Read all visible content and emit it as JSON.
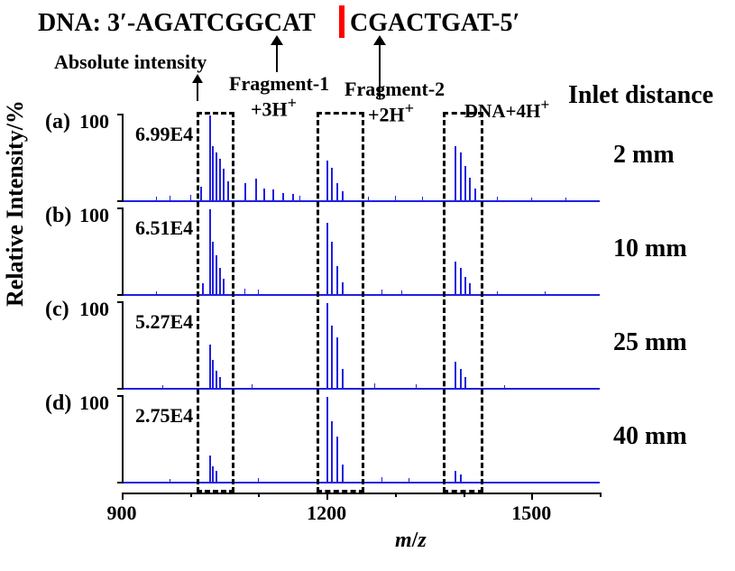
{
  "dna": {
    "left": "DNA: 3′-AGATCGGCAT",
    "right": "CGACTGAT-5′",
    "bar_color": "#ff0000"
  },
  "headers": {
    "absolute_intensity": "Absolute intensity",
    "fragment1": "Fragment-1",
    "fragment1_sub": "+3H",
    "fragment2": "Fragment-2",
    "fragment2_sub": "+2H",
    "dna4h": "DNA+4H",
    "inlet_distance": "Inlet distance"
  },
  "ylabel": "Relative Intensity/%",
  "xaxis": {
    "title_m": "m",
    "title_slash": "/",
    "title_z": "z",
    "min": 900,
    "max": 1600,
    "major_ticks": [
      900,
      1200,
      1500
    ],
    "minor_every2of3": true,
    "label_fontsize": 22
  },
  "colors": {
    "peak": "#2020e0",
    "text": "#000000",
    "bg": "#ffffff"
  },
  "annotation_boxes": {
    "f1": {
      "mz_lo": 1010,
      "mz_hi": 1065
    },
    "f2": {
      "mz_lo": 1185,
      "mz_hi": 1255
    },
    "dna": {
      "mz_lo": 1370,
      "mz_hi": 1430
    }
  },
  "panels": [
    {
      "id": "a",
      "letter": "(a)",
      "abs_int": "6.99E4",
      "inlet": "2 mm",
      "peaks": [
        {
          "mz": 1028,
          "h": 98
        },
        {
          "mz": 1032,
          "h": 62
        },
        {
          "mz": 1037,
          "h": 55
        },
        {
          "mz": 1042,
          "h": 48
        },
        {
          "mz": 1048,
          "h": 36
        },
        {
          "mz": 1055,
          "h": 22
        },
        {
          "mz": 1015,
          "h": 16
        },
        {
          "mz": 1080,
          "h": 20
        },
        {
          "mz": 1095,
          "h": 25
        },
        {
          "mz": 1108,
          "h": 14
        },
        {
          "mz": 1120,
          "h": 13
        },
        {
          "mz": 1135,
          "h": 8
        },
        {
          "mz": 1150,
          "h": 7
        },
        {
          "mz": 1200,
          "h": 46
        },
        {
          "mz": 1207,
          "h": 38
        },
        {
          "mz": 1214,
          "h": 20
        },
        {
          "mz": 1222,
          "h": 10
        },
        {
          "mz": 1388,
          "h": 62
        },
        {
          "mz": 1395,
          "h": 55
        },
        {
          "mz": 1402,
          "h": 40
        },
        {
          "mz": 1409,
          "h": 26
        },
        {
          "mz": 1416,
          "h": 14
        }
      ],
      "noise": [
        {
          "mz": 950,
          "h": 4
        },
        {
          "mz": 970,
          "h": 5
        },
        {
          "mz": 1000,
          "h": 6
        },
        {
          "mz": 1160,
          "h": 5
        },
        {
          "mz": 1260,
          "h": 4
        },
        {
          "mz": 1300,
          "h": 5
        },
        {
          "mz": 1340,
          "h": 4
        },
        {
          "mz": 1450,
          "h": 4
        },
        {
          "mz": 1500,
          "h": 3
        },
        {
          "mz": 1550,
          "h": 3
        }
      ]
    },
    {
      "id": "b",
      "letter": "(b)",
      "abs_int": "6.51E4",
      "inlet": "10 mm",
      "peaks": [
        {
          "mz": 1028,
          "h": 98
        },
        {
          "mz": 1032,
          "h": 60
        },
        {
          "mz": 1037,
          "h": 45
        },
        {
          "mz": 1042,
          "h": 30
        },
        {
          "mz": 1048,
          "h": 18
        },
        {
          "mz": 1018,
          "h": 12
        },
        {
          "mz": 1200,
          "h": 82
        },
        {
          "mz": 1207,
          "h": 60
        },
        {
          "mz": 1214,
          "h": 32
        },
        {
          "mz": 1222,
          "h": 14
        },
        {
          "mz": 1388,
          "h": 38
        },
        {
          "mz": 1395,
          "h": 30
        },
        {
          "mz": 1402,
          "h": 20
        },
        {
          "mz": 1409,
          "h": 12
        }
      ],
      "noise": [
        {
          "mz": 950,
          "h": 3
        },
        {
          "mz": 1080,
          "h": 6
        },
        {
          "mz": 1100,
          "h": 5
        },
        {
          "mz": 1280,
          "h": 5
        },
        {
          "mz": 1310,
          "h": 4
        },
        {
          "mz": 1450,
          "h": 3
        },
        {
          "mz": 1520,
          "h": 3
        }
      ]
    },
    {
      "id": "c",
      "letter": "(c)",
      "abs_int": "5.27E4",
      "inlet": "25 mm",
      "peaks": [
        {
          "mz": 1028,
          "h": 50
        },
        {
          "mz": 1032,
          "h": 32
        },
        {
          "mz": 1037,
          "h": 20
        },
        {
          "mz": 1042,
          "h": 12
        },
        {
          "mz": 1200,
          "h": 98
        },
        {
          "mz": 1207,
          "h": 72
        },
        {
          "mz": 1214,
          "h": 58
        },
        {
          "mz": 1222,
          "h": 22
        },
        {
          "mz": 1388,
          "h": 30
        },
        {
          "mz": 1395,
          "h": 22
        },
        {
          "mz": 1402,
          "h": 12
        }
      ],
      "noise": [
        {
          "mz": 960,
          "h": 3
        },
        {
          "mz": 1090,
          "h": 4
        },
        {
          "mz": 1270,
          "h": 5
        },
        {
          "mz": 1330,
          "h": 4
        },
        {
          "mz": 1460,
          "h": 3
        }
      ]
    },
    {
      "id": "d",
      "letter": "(d)",
      "abs_int": "2.75E4",
      "inlet": "40 mm",
      "peaks": [
        {
          "mz": 1028,
          "h": 30
        },
        {
          "mz": 1032,
          "h": 18
        },
        {
          "mz": 1037,
          "h": 12
        },
        {
          "mz": 1200,
          "h": 98
        },
        {
          "mz": 1207,
          "h": 70
        },
        {
          "mz": 1214,
          "h": 52
        },
        {
          "mz": 1222,
          "h": 20
        },
        {
          "mz": 1388,
          "h": 12
        },
        {
          "mz": 1395,
          "h": 8
        }
      ],
      "noise": [
        {
          "mz": 970,
          "h": 3
        },
        {
          "mz": 1100,
          "h": 4
        },
        {
          "mz": 1280,
          "h": 5
        },
        {
          "mz": 1320,
          "h": 4
        }
      ]
    }
  ]
}
